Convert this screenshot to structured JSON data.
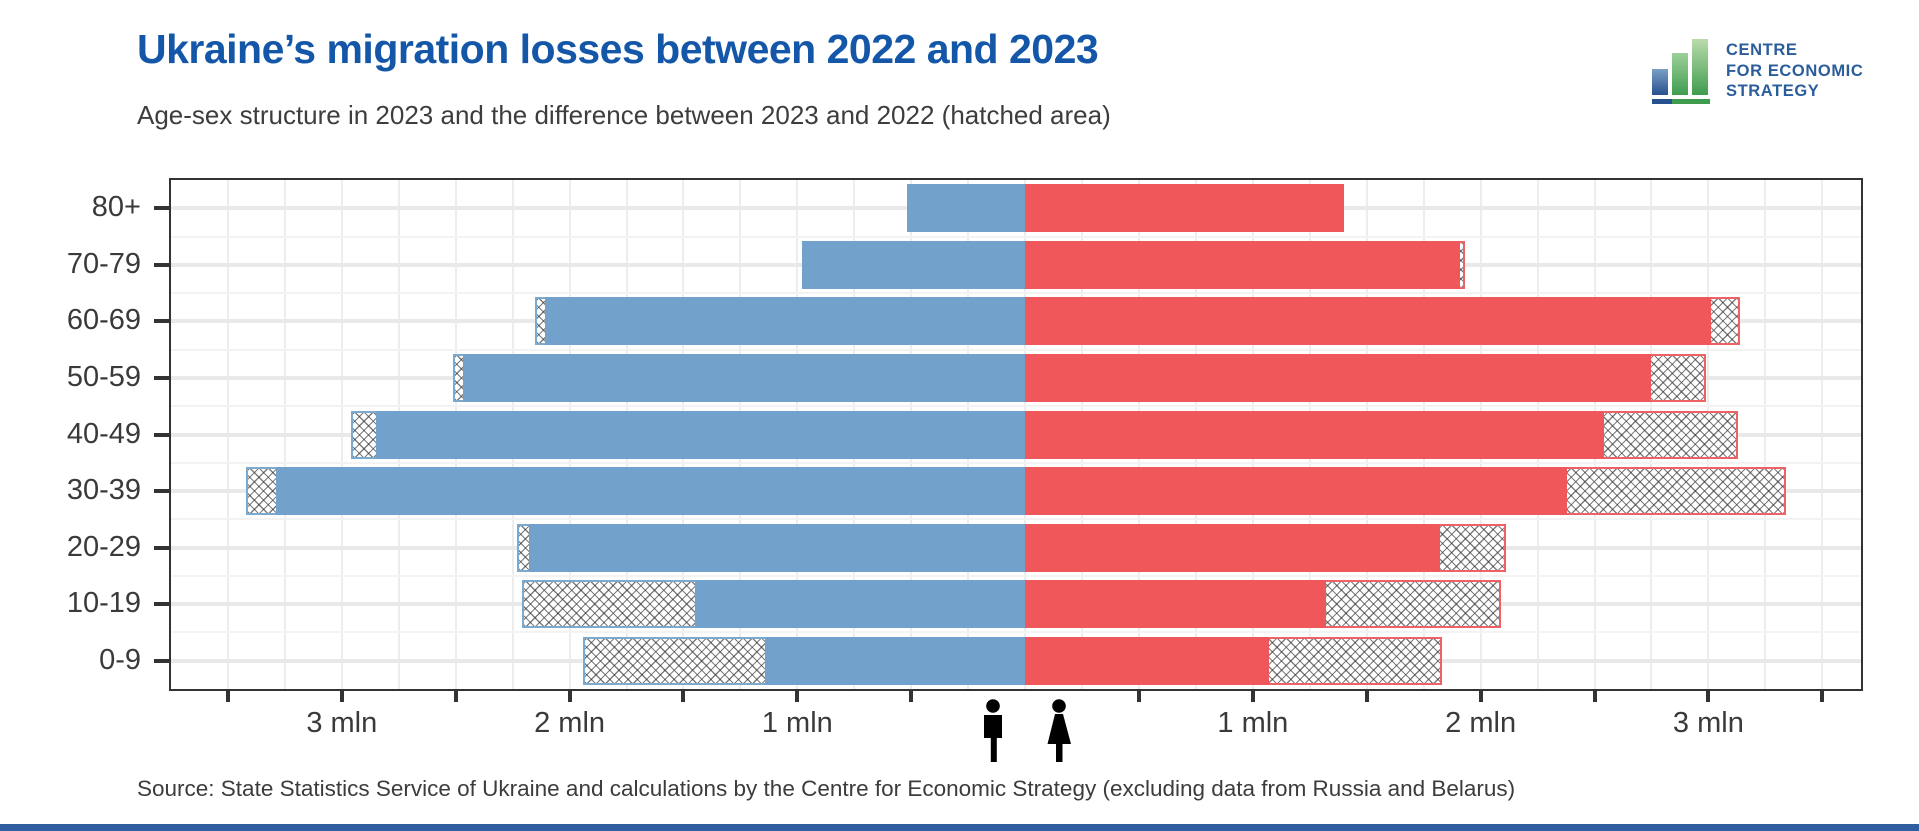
{
  "header": {
    "title": "Ukraine’s migration losses between 2022 and 2023",
    "subtitle": "Age-sex structure in 2023 and the difference between 2023 and 2022 (hatched area)"
  },
  "logo": {
    "line1": "CENTRE",
    "line2": "FOR ECONOMIC",
    "line3": "STRATEGY",
    "icon": "bar-chart-logo-icon"
  },
  "footer": {
    "source": "Source: State Statistics Service of Ukraine and calculations by the Centre for Economic Strategy (excluding data from Russia and Belarus)"
  },
  "icons": {
    "male": "male-person-icon",
    "female": "female-person-icon"
  },
  "colors": {
    "title_blue": "#1457a8",
    "male_bar": "#72a1cb",
    "female_bar": "#ef575b",
    "male_hatch_border": "#7caace",
    "female_hatch_border": "#ee6165",
    "axis": "#333333",
    "grid": "#ededed",
    "logo_blue": "#2b5d9b",
    "logo_green": "#3f9c4e"
  },
  "chart_data": {
    "type": "bar",
    "variant": "population-pyramid",
    "title": "Ukraine’s migration losses between 2022 and 2023",
    "subtitle": "Age-sex structure in 2023 and the difference between 2023 and 2022 (hatched area)",
    "categories": [
      "80+",
      "70-79",
      "60-69",
      "50-59",
      "40-49",
      "30-39",
      "20-29",
      "10-19",
      "0-9"
    ],
    "unit": "mln people",
    "series": [
      {
        "name": "Male 2023",
        "side": "left",
        "style": "solid",
        "values": [
          0.52,
          0.98,
          2.11,
          2.47,
          2.85,
          3.29,
          2.18,
          1.45,
          1.14
        ]
      },
      {
        "name": "Male 2022",
        "side": "left",
        "style": "hatched",
        "values": [
          0.52,
          0.98,
          2.15,
          2.51,
          2.96,
          3.42,
          2.23,
          2.21,
          1.94
        ]
      },
      {
        "name": "Female 2023",
        "side": "right",
        "style": "solid",
        "values": [
          1.4,
          1.91,
          3.01,
          2.75,
          2.54,
          2.38,
          1.82,
          1.32,
          1.07
        ]
      },
      {
        "name": "Female 2022",
        "side": "right",
        "style": "hatched",
        "values": [
          1.4,
          1.93,
          3.14,
          2.99,
          3.13,
          3.34,
          2.11,
          2.09,
          1.83
        ]
      }
    ],
    "xlim": [
      -3.75,
      3.67
    ],
    "x_minor_grid_step_mln": 0.25,
    "x_tick_step_mln": 0.5,
    "x_tick_labels": [
      {
        "value": -3,
        "label": "3 mln"
      },
      {
        "value": -2,
        "label": "2 mln"
      },
      {
        "value": -1,
        "label": "1 mln"
      },
      {
        "value": 1,
        "label": "1 mln"
      },
      {
        "value": 2,
        "label": "2 mln"
      },
      {
        "value": 3,
        "label": "3 mln"
      }
    ],
    "grid": true,
    "legend": "none"
  }
}
